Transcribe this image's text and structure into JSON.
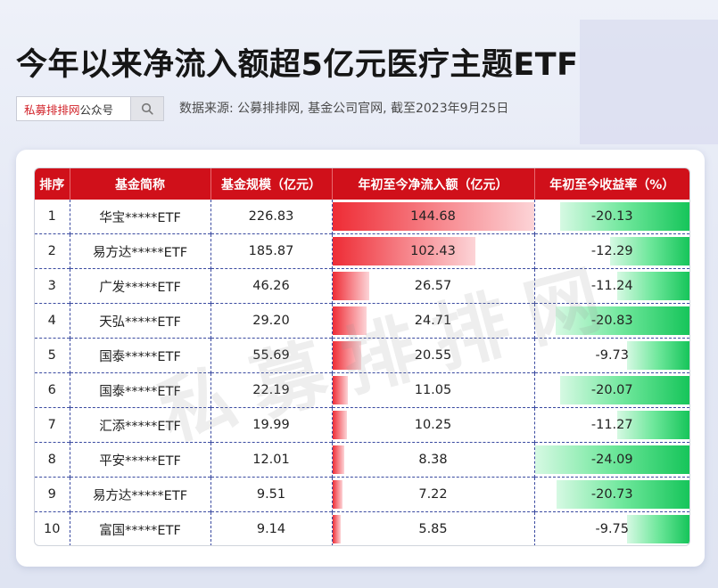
{
  "title": "今年以来净流入额超5亿元医疗主题ETF",
  "search": {
    "brand": "私募排排网",
    "suffix": "公众号"
  },
  "source": "数据来源: 公募排排网, 基金公司官网, 截至2023年9月25日",
  "watermark": "私募排排网",
  "table": {
    "headers": [
      "排序",
      "基金简称",
      "基金规模（亿元）",
      "年初至今净流入额（亿元）",
      "年初至今收益率（%）"
    ],
    "rows": [
      {
        "rank": "1",
        "name": "华宝*****ETF",
        "scale": "226.83",
        "inflow": "144.68",
        "return": "-20.13"
      },
      {
        "rank": "2",
        "name": "易方达*****ETF",
        "scale": "185.87",
        "inflow": "102.43",
        "return": "-12.29"
      },
      {
        "rank": "3",
        "name": "广发*****ETF",
        "scale": "46.26",
        "inflow": "26.57",
        "return": "-11.24"
      },
      {
        "rank": "4",
        "name": "天弘*****ETF",
        "scale": "29.20",
        "inflow": "24.71",
        "return": "-20.83"
      },
      {
        "rank": "5",
        "name": "国泰*****ETF",
        "scale": "55.69",
        "inflow": "20.55",
        "return": "-9.73"
      },
      {
        "rank": "6",
        "name": "国泰*****ETF",
        "scale": "22.19",
        "inflow": "11.05",
        "return": "-20.07"
      },
      {
        "rank": "7",
        "name": "汇添*****ETF",
        "scale": "19.99",
        "inflow": "10.25",
        "return": "-11.27"
      },
      {
        "rank": "8",
        "name": "平安*****ETF",
        "scale": "12.01",
        "inflow": "8.38",
        "return": "-24.09"
      },
      {
        "rank": "9",
        "name": "易方达*****ETF",
        "scale": "9.51",
        "inflow": "7.22",
        "return": "-20.73"
      },
      {
        "rank": "10",
        "name": "富国*****ETF",
        "scale": "9.14",
        "inflow": "5.85",
        "return": "-9.75"
      }
    ]
  },
  "colors": {
    "header_red": "#d0101a",
    "bar_red": "#ee2c35",
    "bar_green": "#16c55a"
  }
}
